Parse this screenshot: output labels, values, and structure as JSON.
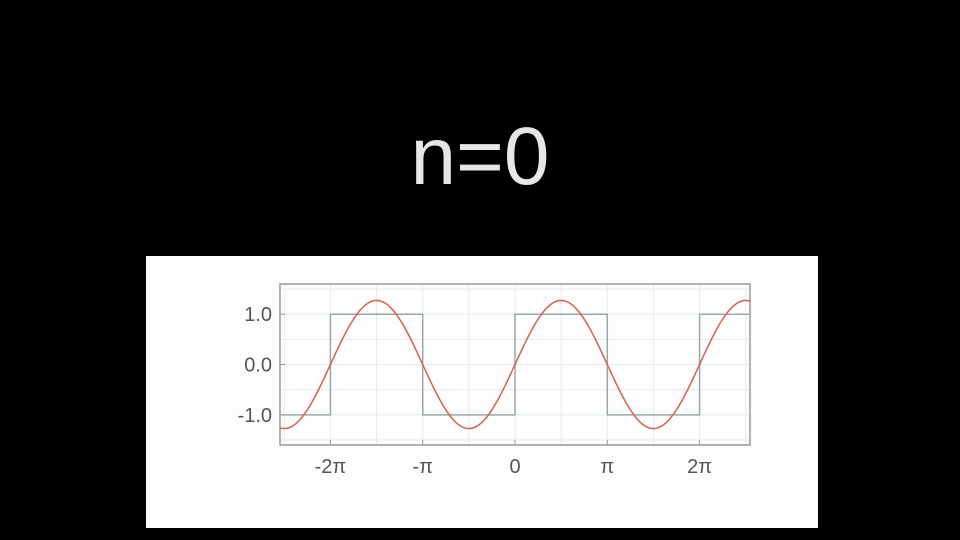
{
  "title": "n=0",
  "chart_data": {
    "type": "line",
    "title": "",
    "xlabel": "",
    "ylabel": "",
    "xlim": [
      -8,
      8
    ],
    "ylim": [
      -1.6,
      1.6
    ],
    "grid": true,
    "xticks": [
      {
        "value": -6.2832,
        "label": "-2π"
      },
      {
        "value": -3.1416,
        "label": "-π"
      },
      {
        "value": 0,
        "label": "0"
      },
      {
        "value": 3.1416,
        "label": "π"
      },
      {
        "value": 6.2832,
        "label": "2π"
      }
    ],
    "yticks": [
      {
        "value": 1.0,
        "label": "1.0"
      },
      {
        "value": 0.0,
        "label": "0.0"
      },
      {
        "value": -1.0,
        "label": "-1.0"
      }
    ],
    "series": [
      {
        "kind": "square-wave",
        "color": "#9aa8a8",
        "x": [
          -8,
          -6.2832,
          -6.2832,
          -3.1416,
          -3.1416,
          0,
          0,
          3.1416,
          3.1416,
          6.2832,
          6.2832,
          8
        ],
        "y": [
          -1,
          -1,
          1,
          1,
          -1,
          -1,
          1,
          1,
          -1,
          -1,
          1,
          1
        ]
      },
      {
        "kind": "fourier-approximation",
        "function": "(4/π)·sin(x)",
        "amplitude": 1.2732,
        "color": "#d9604a"
      }
    ]
  },
  "colors": {
    "background": "#000000",
    "panel": "#fdfdfd",
    "grid": "#e4ecec",
    "axis": "#999999"
  }
}
